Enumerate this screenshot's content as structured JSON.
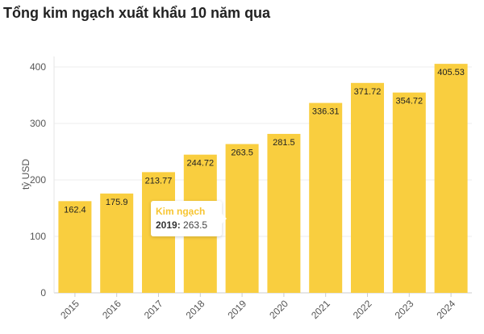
{
  "chart_data": {
    "type": "bar",
    "title": "Tổng kim ngạch xuất khẩu 10 năm qua",
    "xlabel": "",
    "ylabel": "tỷ USD",
    "ylim": [
      0,
      450
    ],
    "yticks": [
      "0",
      "100",
      "200",
      "300",
      "400"
    ],
    "grid": true,
    "categories": [
      "2015",
      "2016",
      "2017",
      "2018",
      "2019",
      "2020",
      "2021",
      "2022",
      "2023",
      "2024"
    ],
    "series": [
      {
        "name": "Kim ngạch",
        "color": "#f9ce3f",
        "values": [
          162.4,
          175.9,
          213.77,
          244.72,
          263.5,
          281.5,
          336.31,
          371.72,
          354.72,
          405.53
        ],
        "labels": [
          "162.4",
          "175.9",
          "213.77",
          "244.72",
          "263.5",
          "281.5",
          "336.31",
          "371.72",
          "354.72",
          "405.53"
        ]
      }
    ]
  },
  "tooltip": {
    "series": "Kim ngạch",
    "year": "2019:",
    "value": "263.5"
  }
}
